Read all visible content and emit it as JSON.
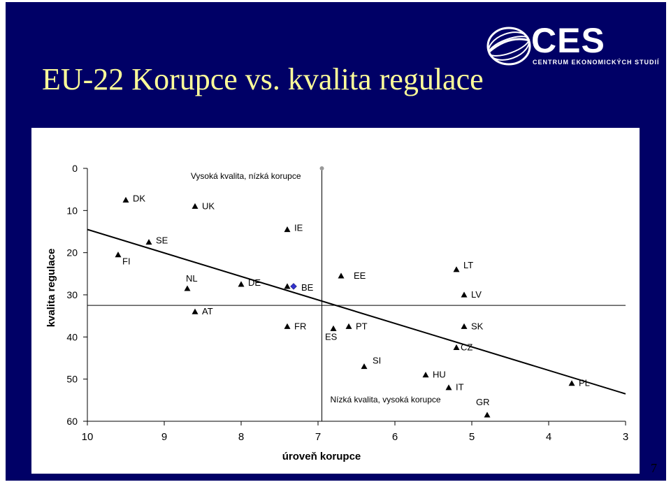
{
  "slide": {
    "title": "EU-22 Korupce vs. kvalita regulace",
    "page_number": "7",
    "background_color": "#000066",
    "title_color": "#ffff99"
  },
  "logo": {
    "name": "CES",
    "subtitle": "CENTRUM EKONOMICKÝCH STUDIÍ",
    "icon": "globe-swirl-icon"
  },
  "chart_data": {
    "type": "scatter",
    "xlabel": "úroveň korupce",
    "ylabel": "kvalita regulace",
    "xlim": [
      10,
      3
    ],
    "ylim": [
      0,
      60
    ],
    "x_reversed": true,
    "y_reversed": true,
    "x_ticks": [
      "10",
      "9",
      "8",
      "7",
      "6",
      "5",
      "4",
      "3"
    ],
    "y_ticks": [
      "0",
      "10",
      "20",
      "30",
      "40",
      "50",
      "60"
    ],
    "annotations": [
      {
        "text": "Vysoká kvalita, nízká korupce"
      },
      {
        "text": "Nízká kvalita, vysoká korupce"
      }
    ],
    "reference_lines": {
      "vertical_x": 6.95,
      "horizontal_y": 32.5
    },
    "trendline": {
      "x": [
        10,
        3
      ],
      "y": [
        14.5,
        53.5
      ]
    },
    "points": [
      {
        "label": "DK",
        "x": 9.5,
        "y": 7.5
      },
      {
        "label": "UK",
        "x": 8.6,
        "y": 9.0
      },
      {
        "label": "IE",
        "x": 7.4,
        "y": 14.5
      },
      {
        "label": "SE",
        "x": 9.2,
        "y": 17.5
      },
      {
        "label": "FI",
        "x": 9.6,
        "y": 20.5
      },
      {
        "label": "NL",
        "x": 8.7,
        "y": 28.5
      },
      {
        "label": "DE",
        "x": 8.0,
        "y": 27.5
      },
      {
        "label": "BE",
        "x": 7.4,
        "y": 28.0
      },
      {
        "label": "EE",
        "x": 6.7,
        "y": 25.5
      },
      {
        "label": "AT",
        "x": 8.6,
        "y": 34.0
      },
      {
        "label": "FR",
        "x": 7.4,
        "y": 37.5
      },
      {
        "label": "ES",
        "x": 6.8,
        "y": 38.0
      },
      {
        "label": "PT",
        "x": 6.6,
        "y": 37.5
      },
      {
        "label": "LT",
        "x": 5.2,
        "y": 24.0
      },
      {
        "label": "LV",
        "x": 5.1,
        "y": 30.0
      },
      {
        "label": "SK",
        "x": 5.1,
        "y": 37.5
      },
      {
        "label": "CZ",
        "x": 5.2,
        "y": 42.5
      },
      {
        "label": "SI",
        "x": 6.4,
        "y": 47.0
      },
      {
        "label": "HU",
        "x": 5.6,
        "y": 49.0
      },
      {
        "label": "IT",
        "x": 5.3,
        "y": 52.0
      },
      {
        "label": "GR",
        "x": 4.8,
        "y": 58.5
      },
      {
        "label": "PL",
        "x": 3.7,
        "y": 51.0
      }
    ]
  }
}
